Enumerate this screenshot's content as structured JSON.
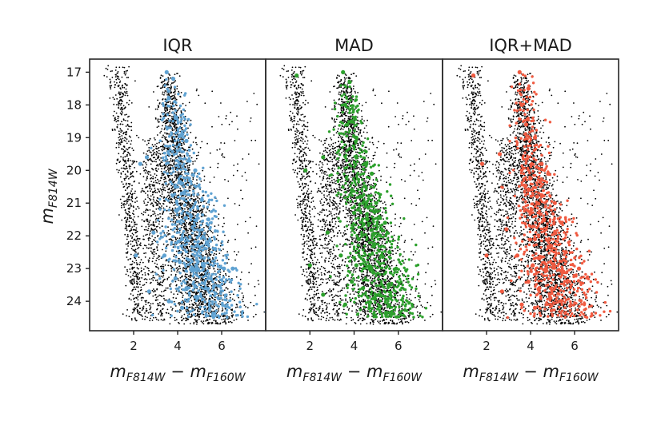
{
  "chart_data": {
    "type": "scatter",
    "description_kind": "color-magnitude diagram, three panels sharing y axis",
    "ylabel": {
      "main": "m",
      "sub": "F814W"
    },
    "xlabel": {
      "main1": "m",
      "sub1": "F814W",
      "minus": " − ",
      "main2": "m",
      "sub2": "F160W"
    },
    "xlim": [
      0.0,
      8.0
    ],
    "ylim": [
      24.9,
      16.6
    ],
    "y_inverted": true,
    "xticks": [
      2,
      4,
      6
    ],
    "xtick_labels": [
      "2",
      "4",
      "6"
    ],
    "yticks": [
      17,
      18,
      19,
      20,
      21,
      22,
      23,
      24
    ],
    "ytick_labels": [
      "17",
      "18",
      "19",
      "20",
      "21",
      "22",
      "23",
      "24"
    ],
    "grid": false,
    "background_points_color": "#000000",
    "panels": [
      {
        "title": "IQR",
        "highlight_color": "#5fa2d2",
        "highlight_points": [
          [
            3.5,
            17.0
          ],
          [
            3.8,
            17.2
          ],
          [
            3.6,
            17.8
          ],
          [
            3.9,
            18.4
          ],
          [
            4.2,
            18.9
          ],
          [
            4.4,
            19.1
          ],
          [
            2.6,
            19.6
          ],
          [
            2.3,
            19.8
          ],
          [
            4.5,
            19.7
          ],
          [
            4.8,
            20.0
          ],
          [
            3.9,
            20.5
          ],
          [
            4.3,
            20.7
          ],
          [
            5.1,
            20.9
          ],
          [
            4.0,
            21.2
          ],
          [
            4.6,
            21.4
          ],
          [
            5.4,
            21.5
          ],
          [
            2.9,
            21.9
          ],
          [
            4.2,
            22.1
          ],
          [
            4.9,
            22.3
          ],
          [
            5.7,
            22.4
          ],
          [
            3.4,
            22.6
          ],
          [
            2.1,
            22.6
          ],
          [
            4.1,
            22.8
          ],
          [
            4.7,
            23.0
          ],
          [
            6.1,
            23.0
          ],
          [
            6.5,
            23.0
          ],
          [
            3.9,
            23.3
          ],
          [
            4.4,
            23.6
          ],
          [
            2.7,
            23.7
          ],
          [
            4.9,
            23.9
          ],
          [
            3.6,
            24.0
          ],
          [
            4.2,
            24.2
          ]
        ]
      },
      {
        "title": "MAD",
        "highlight_color": "#2ca02c",
        "highlight_points": [
          [
            1.4,
            17.1
          ],
          [
            3.5,
            17.0
          ],
          [
            3.8,
            17.3
          ],
          [
            3.6,
            18.0
          ],
          [
            3.9,
            18.5
          ],
          [
            4.1,
            19.0
          ],
          [
            2.6,
            19.6
          ],
          [
            1.8,
            20.0
          ],
          [
            4.5,
            19.8
          ],
          [
            4.8,
            20.1
          ],
          [
            3.9,
            20.6
          ],
          [
            4.3,
            20.8
          ],
          [
            5.0,
            21.0
          ],
          [
            4.0,
            21.3
          ],
          [
            4.6,
            21.5
          ],
          [
            5.4,
            21.6
          ],
          [
            2.8,
            21.9
          ],
          [
            4.2,
            22.1
          ],
          [
            4.9,
            22.3
          ],
          [
            5.6,
            22.5
          ],
          [
            3.4,
            22.6
          ],
          [
            2.0,
            22.9
          ],
          [
            4.1,
            22.9
          ],
          [
            4.7,
            23.0
          ],
          [
            5.9,
            23.0
          ],
          [
            3.9,
            23.4
          ],
          [
            4.4,
            23.6
          ],
          [
            2.6,
            23.8
          ],
          [
            4.9,
            23.9
          ],
          [
            3.6,
            24.1
          ]
        ]
      },
      {
        "title": "IQR+MAD",
        "highlight_color": "#f05a40",
        "highlight_points": [
          [
            1.4,
            17.1
          ],
          [
            3.5,
            17.0
          ],
          [
            3.9,
            17.5
          ],
          [
            3.6,
            18.0
          ],
          [
            3.8,
            18.6
          ],
          [
            4.2,
            19.0
          ],
          [
            2.6,
            19.5
          ],
          [
            1.8,
            19.8
          ],
          [
            4.5,
            19.8
          ],
          [
            4.8,
            20.1
          ],
          [
            3.9,
            20.6
          ],
          [
            4.3,
            20.8
          ],
          [
            5.1,
            21.0
          ],
          [
            4.0,
            21.3
          ],
          [
            4.6,
            21.5
          ],
          [
            5.4,
            21.6
          ],
          [
            2.9,
            21.8
          ],
          [
            4.2,
            22.1
          ],
          [
            4.9,
            22.3
          ],
          [
            5.6,
            22.5
          ],
          [
            3.4,
            22.6
          ],
          [
            2.0,
            22.6
          ],
          [
            4.1,
            22.9
          ],
          [
            4.7,
            23.0
          ],
          [
            6.2,
            23.0
          ],
          [
            3.9,
            23.4
          ],
          [
            4.4,
            23.6
          ],
          [
            2.7,
            23.7
          ],
          [
            4.9,
            23.9
          ],
          [
            3.6,
            24.1
          ],
          [
            4.2,
            24.2
          ]
        ]
      }
    ]
  }
}
